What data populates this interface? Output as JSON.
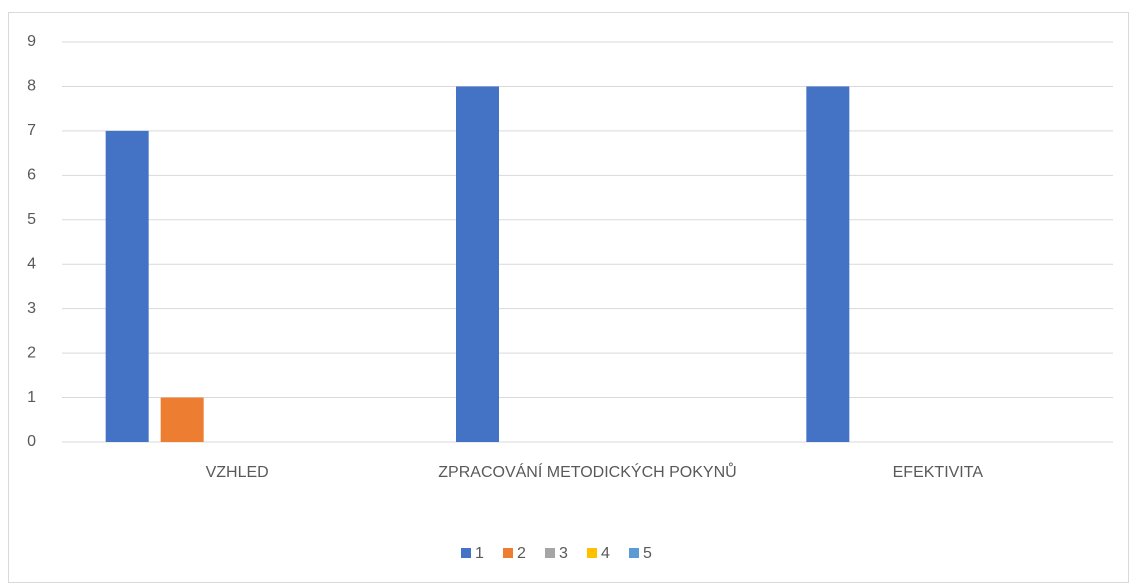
{
  "chart_data": {
    "type": "bar",
    "categories": [
      "VZHLED",
      "ZPRACOVÁNÍ METODICKÝCH POKYNŮ",
      "EFEKTIVITA"
    ],
    "series": [
      {
        "name": "1",
        "color": "#4472c4",
        "values": [
          7,
          8,
          8
        ]
      },
      {
        "name": "2",
        "color": "#ed7d31",
        "values": [
          1,
          0,
          0
        ]
      },
      {
        "name": "3",
        "color": "#a5a5a5",
        "values": [
          0,
          0,
          0
        ]
      },
      {
        "name": "4",
        "color": "#ffc000",
        "values": [
          0,
          0,
          0
        ]
      },
      {
        "name": "5",
        "color": "#5b9bd5",
        "values": [
          0,
          0,
          0
        ]
      }
    ],
    "ylim": [
      0,
      9
    ],
    "yticks": [
      0,
      1,
      2,
      3,
      4,
      5,
      6,
      7,
      8,
      9
    ],
    "grid": true,
    "legend": "bottom"
  }
}
